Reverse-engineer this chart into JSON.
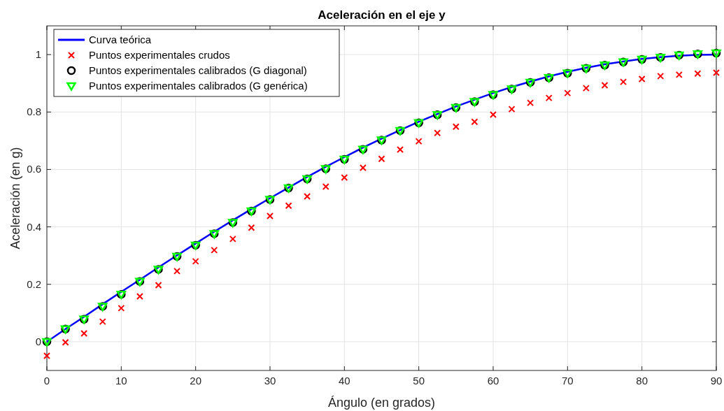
{
  "chart_data": {
    "type": "line",
    "title": "Aceleración en el eje y",
    "xlabel": "Ángulo (en grados)",
    "ylabel": "Aceleración (en g)",
    "x": [
      0,
      2.5,
      5,
      7.5,
      10,
      12.5,
      15,
      17.5,
      20,
      22.5,
      25,
      27.5,
      30,
      32.5,
      35,
      37.5,
      40,
      42.5,
      45,
      47.5,
      50,
      52.5,
      55,
      57.5,
      60,
      62.5,
      65,
      67.5,
      70,
      72.5,
      75,
      77.5,
      80,
      82.5,
      85,
      87.5,
      90
    ],
    "series": [
      {
        "name": "Curva teórica",
        "color": "#0000ff",
        "marker": "none",
        "values": [
          0,
          0.044,
          0.087,
          0.131,
          0.174,
          0.216,
          0.259,
          0.301,
          0.342,
          0.383,
          0.423,
          0.462,
          0.5,
          0.537,
          0.574,
          0.609,
          0.643,
          0.676,
          0.707,
          0.737,
          0.766,
          0.793,
          0.819,
          0.843,
          0.866,
          0.887,
          0.906,
          0.924,
          0.94,
          0.954,
          0.966,
          0.976,
          0.985,
          0.991,
          0.996,
          0.999,
          1
        ]
      },
      {
        "name": "Puntos experimentales crudos",
        "type": "scatter",
        "color": "#ff0000",
        "marker": "cross",
        "values": [
          -0.049,
          -0.002,
          0.029,
          0.07,
          0.117,
          0.158,
          0.197,
          0.246,
          0.28,
          0.319,
          0.358,
          0.397,
          0.438,
          0.474,
          0.506,
          0.54,
          0.572,
          0.606,
          0.637,
          0.669,
          0.698,
          0.727,
          0.749,
          0.766,
          0.791,
          0.81,
          0.832,
          0.849,
          0.866,
          0.883,
          0.893,
          0.905,
          0.915,
          0.925,
          0.93,
          0.934,
          0.937
        ]
      },
      {
        "name": "Puntos experimentales calibrados (G diagonal)",
        "type": "scatter",
        "color": "#000000",
        "marker": "circle",
        "values": [
          0,
          0.044,
          0.078,
          0.123,
          0.165,
          0.21,
          0.252,
          0.297,
          0.336,
          0.376,
          0.415,
          0.455,
          0.495,
          0.535,
          0.567,
          0.602,
          0.635,
          0.67,
          0.702,
          0.735,
          0.762,
          0.79,
          0.815,
          0.836,
          0.86,
          0.88,
          0.903,
          0.919,
          0.935,
          0.952,
          0.963,
          0.974,
          0.983,
          0.99,
          0.998,
          1.002,
          1.005
        ]
      },
      {
        "name": "Puntos experimentales calibrados (G genérica)",
        "type": "scatter",
        "color": "#00ff00",
        "marker": "triangle",
        "values": [
          0,
          0.044,
          0.078,
          0.123,
          0.165,
          0.21,
          0.252,
          0.297,
          0.336,
          0.376,
          0.415,
          0.455,
          0.495,
          0.535,
          0.567,
          0.602,
          0.635,
          0.67,
          0.702,
          0.735,
          0.762,
          0.79,
          0.815,
          0.836,
          0.86,
          0.88,
          0.903,
          0.919,
          0.935,
          0.952,
          0.963,
          0.974,
          0.983,
          0.99,
          0.998,
          1.002,
          1.005
        ]
      }
    ],
    "xlim": [
      0,
      90
    ],
    "xticks": [
      0,
      10,
      20,
      30,
      40,
      50,
      60,
      70,
      80,
      90
    ],
    "ylim": [
      -0.1,
      1.1
    ],
    "yticks": [
      0,
      0.2,
      0.4,
      0.6,
      0.8,
      1
    ],
    "grid": true,
    "legend": "top left"
  }
}
